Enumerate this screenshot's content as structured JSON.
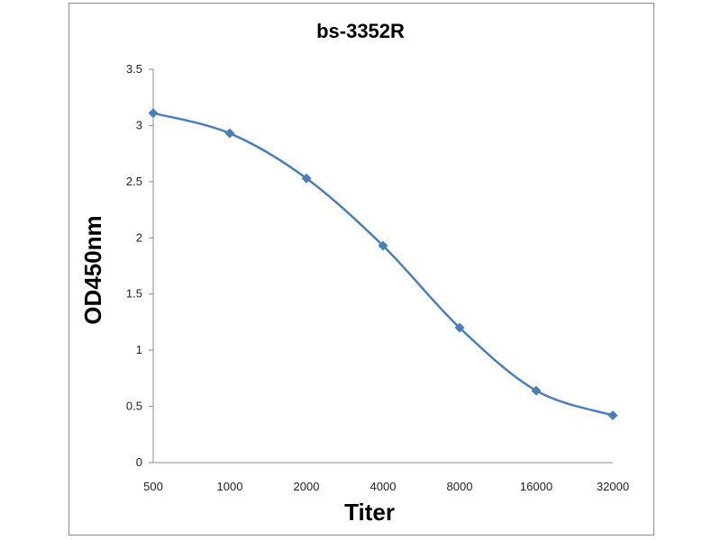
{
  "chart_data": {
    "type": "line",
    "title": "bs-3352R",
    "xlabel": "Titer",
    "ylabel": "OD450nm",
    "categories": [
      "500",
      "1000",
      "2000",
      "4000",
      "8000",
      "16000",
      "32000"
    ],
    "series": [
      {
        "values": [
          3.11,
          2.93,
          2.53,
          1.93,
          1.2,
          0.64,
          0.42
        ]
      }
    ],
    "ylim": [
      0,
      3.5
    ],
    "yticks": [
      "0",
      "0.5",
      "1",
      "1.5",
      "2",
      "2.5",
      "3",
      "3.5"
    ],
    "grid": false,
    "legend": "none",
    "colors": {
      "line": "#4a7ebb",
      "axis": "#8c8c8c"
    }
  }
}
